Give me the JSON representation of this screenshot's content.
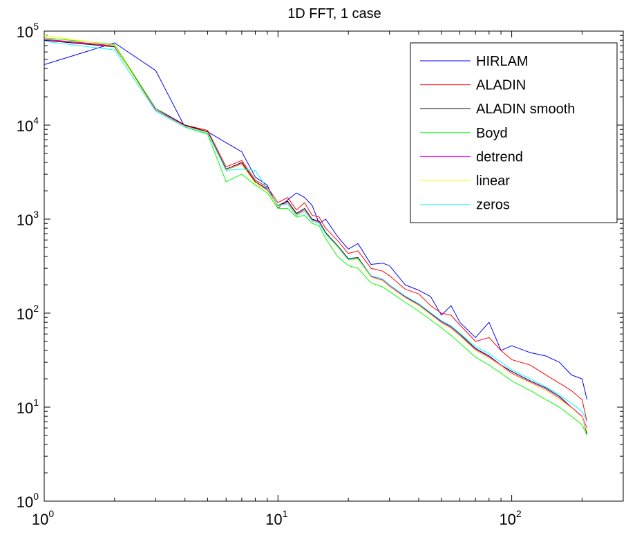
{
  "chart_data": {
    "type": "line",
    "title": "1D FFT, 1 case",
    "xlabel": "",
    "ylabel": "",
    "xscale": "log",
    "yscale": "log",
    "xlim": [
      1,
      300
    ],
    "ylim": [
      1,
      100000
    ],
    "grid": false,
    "legend_position": "top-right",
    "x_ticks": [
      {
        "value": 1,
        "base": "10",
        "exp": "0"
      },
      {
        "value": 10,
        "base": "10",
        "exp": "1"
      },
      {
        "value": 100,
        "base": "10",
        "exp": "2"
      }
    ],
    "y_ticks": [
      {
        "value": 1,
        "base": "10",
        "exp": "0"
      },
      {
        "value": 10,
        "base": "10",
        "exp": "1"
      },
      {
        "value": 100,
        "base": "10",
        "exp": "2"
      },
      {
        "value": 1000,
        "base": "10",
        "exp": "3"
      },
      {
        "value": 10000,
        "base": "10",
        "exp": "4"
      },
      {
        "value": 100000,
        "base": "10",
        "exp": "5"
      }
    ],
    "series": [
      {
        "name": "HIRLAM",
        "color": "#0000ff",
        "x": [
          1,
          2,
          3,
          4,
          5,
          6,
          7,
          8,
          9,
          10,
          11,
          12,
          13,
          14,
          15,
          16,
          18,
          20,
          22,
          25,
          28,
          30,
          35,
          40,
          45,
          50,
          55,
          60,
          70,
          80,
          90,
          100,
          120,
          140,
          160,
          180,
          200,
          210
        ],
        "y": [
          44000,
          75000,
          38000,
          9500,
          8500,
          6500,
          5200,
          2800,
          2300,
          1300,
          1600,
          1900,
          1700,
          1400,
          900,
          1000,
          650,
          480,
          550,
          330,
          340,
          320,
          200,
          175,
          150,
          95,
          120,
          80,
          55,
          80,
          40,
          45,
          38,
          35,
          30,
          22,
          20,
          12
        ]
      },
      {
        "name": "ALADIN",
        "color": "#ff0000",
        "x": [
          1,
          2,
          3,
          4,
          5,
          6,
          7,
          8,
          9,
          10,
          11,
          12,
          13,
          14,
          15,
          16,
          18,
          20,
          22,
          25,
          28,
          30,
          35,
          40,
          45,
          50,
          55,
          60,
          70,
          80,
          90,
          100,
          120,
          140,
          160,
          180,
          200,
          210
        ],
        "y": [
          82000,
          70000,
          15000,
          10000,
          8800,
          3600,
          4200,
          2600,
          2200,
          1500,
          1700,
          1250,
          1500,
          1100,
          1050,
          800,
          590,
          430,
          460,
          300,
          280,
          250,
          180,
          160,
          120,
          100,
          95,
          75,
          50,
          55,
          40,
          32,
          28,
          22,
          18,
          15,
          12,
          7
        ]
      },
      {
        "name": "ALADIN smooth",
        "color": "#000000",
        "x": [
          1,
          2,
          3,
          4,
          5,
          6,
          7,
          8,
          9,
          10,
          11,
          12,
          13,
          14,
          15,
          16,
          18,
          20,
          22,
          25,
          28,
          30,
          35,
          40,
          45,
          50,
          55,
          60,
          70,
          80,
          90,
          100,
          120,
          140,
          160,
          180,
          200,
          210
        ],
        "y": [
          80000,
          68000,
          15000,
          10000,
          8500,
          3400,
          4000,
          2500,
          2100,
          1400,
          1550,
          1150,
          1300,
          1000,
          950,
          720,
          520,
          380,
          390,
          250,
          230,
          200,
          150,
          125,
          100,
          82,
          72,
          60,
          42,
          35,
          28,
          24,
          19,
          16,
          13,
          10,
          8,
          5.2
        ]
      },
      {
        "name": "Boyd",
        "color": "#00ff00",
        "x": [
          1,
          2,
          3,
          4,
          5,
          6,
          7,
          8,
          9,
          10,
          11,
          12,
          13,
          14,
          15,
          16,
          18,
          20,
          22,
          25,
          28,
          30,
          35,
          40,
          45,
          50,
          55,
          60,
          70,
          80,
          90,
          100,
          120,
          140,
          160,
          180,
          200,
          210
        ],
        "y": [
          85000,
          72000,
          15000,
          9500,
          8000,
          2500,
          3000,
          2300,
          1900,
          1300,
          1300,
          1050,
          1100,
          900,
          850,
          620,
          400,
          320,
          300,
          210,
          190,
          170,
          130,
          105,
          85,
          70,
          58,
          48,
          34,
          28,
          23,
          19,
          15,
          12,
          10,
          8,
          6.5,
          5
        ]
      },
      {
        "name": "detrend",
        "color": "#ff00ff",
        "x": [
          1,
          2,
          3,
          4,
          5,
          6,
          7,
          8,
          9,
          10,
          11,
          12,
          13,
          14,
          15,
          16,
          18,
          20,
          22,
          25,
          28,
          30,
          35,
          40,
          45,
          50,
          55,
          60,
          70,
          80,
          90,
          100,
          120,
          140,
          160,
          180,
          200,
          210
        ],
        "y": [
          81000,
          69000,
          14500,
          9800,
          8400,
          3300,
          3900,
          2400,
          2050,
          1380,
          1500,
          1120,
          1260,
          980,
          930,
          700,
          510,
          370,
          380,
          245,
          225,
          195,
          148,
          122,
          98,
          80,
          70,
          58,
          41,
          34,
          28,
          23,
          18.5,
          15.5,
          12.5,
          10,
          8,
          6
        ]
      },
      {
        "name": "linear",
        "color": "#ffff00",
        "x": [
          1,
          2,
          3,
          4,
          5,
          6,
          7,
          8,
          9,
          10,
          11,
          12,
          13,
          14,
          15,
          16,
          18,
          20,
          22,
          25,
          28,
          30,
          35,
          40,
          45,
          50,
          55,
          60,
          70,
          80,
          90,
          100,
          120,
          140,
          160,
          180,
          200,
          210
        ],
        "y": [
          90000,
          70000,
          14000,
          9700,
          8300,
          3300,
          3800,
          2400,
          2000,
          1350,
          1480,
          1100,
          1240,
          960,
          910,
          690,
          500,
          365,
          370,
          240,
          220,
          190,
          145,
          120,
          96,
          78,
          68,
          57,
          40,
          33,
          27,
          22.5,
          18,
          15,
          12,
          9.8,
          7.8,
          5.5
        ]
      },
      {
        "name": "zeros",
        "color": "#00ffff",
        "x": [
          1,
          2,
          3,
          4,
          5,
          6,
          7,
          8,
          9,
          10,
          11,
          12,
          13,
          14,
          15,
          16,
          18,
          20,
          22,
          25,
          28,
          30,
          35,
          40,
          45,
          50,
          55,
          60,
          70,
          80,
          90,
          100,
          120,
          140,
          160,
          180,
          200,
          210
        ],
        "y": [
          78000,
          63000,
          14000,
          9500,
          8200,
          3300,
          3400,
          3300,
          2100,
          1400,
          1450,
          1080,
          1220,
          950,
          900,
          700,
          510,
          370,
          380,
          250,
          230,
          200,
          152,
          126,
          101,
          83,
          73,
          61,
          44,
          37,
          30,
          25,
          20,
          16.5,
          13.5,
          11,
          9,
          7
        ]
      }
    ]
  }
}
